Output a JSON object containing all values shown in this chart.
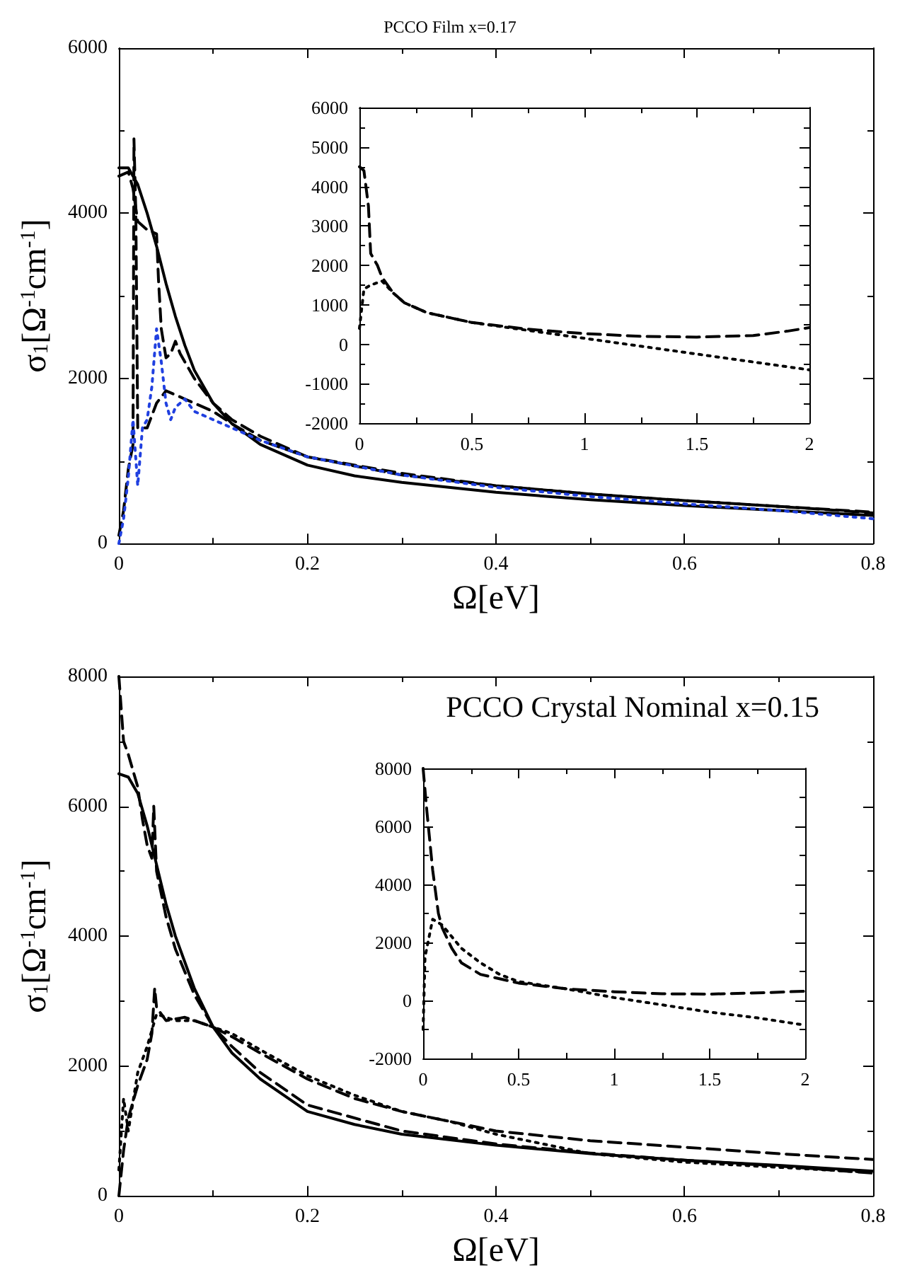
{
  "chart_data": [
    {
      "type": "line",
      "title": "PCCO Film x=0.17",
      "xlabel": "Ω[eV]",
      "ylabel": "σ$_{1}$[Ω$^{-1}$cm$^{-1}$]",
      "xlim": [
        0,
        0.8
      ],
      "xticks": [
        0,
        0.2,
        0.4,
        0.6,
        0.8
      ],
      "ylim": [
        0,
        6000
      ],
      "yticks": [
        0,
        2000,
        4000,
        6000
      ],
      "grid": false,
      "marker": "none",
      "series": [
        {
          "color": "#000000",
          "line_style": "solid",
          "x": [
            0,
            0.01,
            0.02,
            0.03,
            0.04,
            0.05,
            0.06,
            0.07,
            0.08,
            0.1,
            0.12,
            0.15,
            0.2,
            0.25,
            0.3,
            0.4,
            0.5,
            0.6,
            0.7,
            0.8
          ],
          "values": [
            4550,
            4550,
            4350,
            4000,
            3600,
            3150,
            2750,
            2400,
            2100,
            1700,
            1450,
            1200,
            950,
            820,
            740,
            620,
            530,
            460,
            400,
            340
          ]
        },
        {
          "color": "#000000",
          "line_style": "dashed",
          "x": [
            0,
            0.01,
            0.015,
            0.02,
            0.03,
            0.04,
            0.042,
            0.045,
            0.05,
            0.055,
            0.06,
            0.065,
            0.08,
            0.1,
            0.12,
            0.15,
            0.2,
            0.3,
            0.4,
            0.5,
            0.6,
            0.7,
            0.8
          ],
          "values": [
            4450,
            4500,
            4300,
            3900,
            3800,
            3750,
            3200,
            2600,
            2250,
            2300,
            2450,
            2300,
            2000,
            1700,
            1500,
            1300,
            1050,
            830,
            700,
            600,
            520,
            450,
            370
          ]
        },
        {
          "color": "#000000",
          "line_style": "dashed",
          "x": [
            0,
            0.005,
            0.01,
            0.015,
            0.016,
            0.018,
            0.02,
            0.03,
            0.04,
            0.05,
            0.06,
            0.07,
            0.08,
            0.1,
            0.12,
            0.15,
            0.2,
            0.3,
            0.4,
            0.5,
            0.6,
            0.7,
            0.8
          ],
          "values": [
            100,
            400,
            900,
            1200,
            4900,
            4000,
            1400,
            1400,
            1700,
            1850,
            1800,
            1750,
            1700,
            1600,
            1450,
            1250,
            1050,
            850,
            700,
            600,
            520,
            450,
            380
          ]
        },
        {
          "color": "#2040e0",
          "line_style": "dotted",
          "x": [
            0,
            0.005,
            0.01,
            0.015,
            0.02,
            0.025,
            0.03,
            0.035,
            0.04,
            0.045,
            0.05,
            0.055,
            0.06,
            0.07,
            0.08,
            0.1,
            0.12,
            0.15,
            0.2,
            0.3,
            0.4,
            0.5,
            0.6,
            0.7,
            0.8
          ],
          "values": [
            0,
            300,
            800,
            1500,
            700,
            1400,
            1500,
            1900,
            2600,
            2200,
            1700,
            1500,
            1650,
            1750,
            1600,
            1500,
            1400,
            1250,
            1050,
            830,
            680,
            570,
            480,
            400,
            300
          ]
        }
      ]
    },
    {
      "type": "line",
      "xlim": [
        0,
        2
      ],
      "xticks": [
        0,
        0.5,
        1,
        1.5,
        2
      ],
      "ylim": [
        -2000,
        6000
      ],
      "yticks": [
        -2000,
        -1000,
        0,
        1000,
        2000,
        3000,
        4000,
        5000,
        6000
      ],
      "grid": false,
      "marker": "none",
      "series": [
        {
          "color": "#000000",
          "line_style": "dashed",
          "x": [
            0,
            0.02,
            0.04,
            0.05,
            0.08,
            0.1,
            0.15,
            0.2,
            0.3,
            0.5,
            0.75,
            1,
            1.25,
            1.5,
            1.75,
            1.9,
            2
          ],
          "values": [
            4500,
            4400,
            3500,
            2300,
            2000,
            1700,
            1300,
            1050,
            800,
            550,
            380,
            270,
            200,
            180,
            220,
            330,
            420
          ]
        },
        {
          "color": "#000000",
          "line_style": "dotted",
          "x": [
            0,
            0.02,
            0.05,
            0.1,
            0.15,
            0.2,
            0.3,
            0.5,
            0.75,
            1,
            1.25,
            1.5,
            1.75,
            2
          ],
          "values": [
            400,
            1400,
            1500,
            1600,
            1300,
            1050,
            800,
            550,
            350,
            150,
            -50,
            -250,
            -450,
            -650
          ]
        }
      ]
    },
    {
      "type": "line",
      "title": "PCCO Crystal Nominal x=0.15",
      "xlabel": "Ω[eV]",
      "ylabel": "σ$_{1}$[Ω$^{-1}$cm$^{-1}$]",
      "xlim": [
        0,
        0.8
      ],
      "xticks": [
        0,
        0.2,
        0.4,
        0.6,
        0.8
      ],
      "ylim": [
        0,
        8000
      ],
      "yticks": [
        0,
        2000,
        4000,
        6000,
        8000
      ],
      "grid": false,
      "marker": "none",
      "series": [
        {
          "color": "#000000",
          "line_style": "solid",
          "x": [
            0,
            0.01,
            0.02,
            0.03,
            0.04,
            0.05,
            0.06,
            0.08,
            0.1,
            0.12,
            0.15,
            0.2,
            0.25,
            0.3,
            0.4,
            0.5,
            0.6,
            0.7,
            0.8
          ],
          "values": [
            6500,
            6450,
            6200,
            5700,
            5100,
            4500,
            4000,
            3200,
            2600,
            2200,
            1800,
            1300,
            1100,
            950,
            780,
            650,
            550,
            470,
            380
          ]
        },
        {
          "color": "#000000",
          "line_style": "dashed",
          "x": [
            0,
            0.005,
            0.01,
            0.02,
            0.025,
            0.03,
            0.035,
            0.037,
            0.04,
            0.05,
            0.06,
            0.08,
            0.1,
            0.12,
            0.15,
            0.2,
            0.3,
            0.4,
            0.5,
            0.6,
            0.7,
            0.8
          ],
          "values": [
            8000,
            7000,
            6800,
            6300,
            5800,
            5400,
            5200,
            6000,
            5000,
            4300,
            3800,
            3100,
            2600,
            2300,
            1900,
            1400,
            1000,
            800,
            660,
            550,
            460,
            350
          ]
        },
        {
          "color": "#000000",
          "line_style": "dashed",
          "x": [
            0,
            0.005,
            0.01,
            0.02,
            0.03,
            0.035,
            0.038,
            0.04,
            0.05,
            0.07,
            0.09,
            0.1,
            0.12,
            0.15,
            0.2,
            0.25,
            0.3,
            0.35,
            0.4,
            0.5,
            0.6,
            0.7,
            0.8
          ],
          "values": [
            0,
            700,
            1200,
            1700,
            2100,
            2500,
            3200,
            2900,
            2700,
            2750,
            2650,
            2600,
            2450,
            2200,
            1800,
            1500,
            1300,
            1150,
            1000,
            850,
            750,
            650,
            560
          ]
        },
        {
          "color": "#000000",
          "line_style": "dotted",
          "x": [
            0,
            0.005,
            0.01,
            0.02,
            0.03,
            0.04,
            0.06,
            0.08,
            0.1,
            0.12,
            0.15,
            0.2,
            0.25,
            0.3,
            0.35,
            0.4,
            0.45,
            0.5,
            0.6,
            0.7,
            0.8
          ],
          "values": [
            400,
            1500,
            1000,
            1900,
            2300,
            2800,
            2700,
            2700,
            2600,
            2500,
            2250,
            1850,
            1550,
            1300,
            1150,
            950,
            800,
            650,
            520,
            440,
            360
          ]
        }
      ]
    },
    {
      "type": "line",
      "xlim": [
        0,
        2
      ],
      "xticks": [
        0,
        0.5,
        1,
        1.5,
        2
      ],
      "ylim": [
        -2000,
        8000
      ],
      "yticks": [
        -2000,
        0,
        2000,
        4000,
        6000,
        8000
      ],
      "grid": false,
      "marker": "none",
      "series": [
        {
          "color": "#000000",
          "line_style": "dashed",
          "x": [
            0,
            0.02,
            0.05,
            0.08,
            0.1,
            0.15,
            0.2,
            0.3,
            0.5,
            0.75,
            1,
            1.25,
            1.5,
            1.75,
            2
          ],
          "values": [
            8000,
            6500,
            4500,
            3000,
            2500,
            1800,
            1300,
            900,
            600,
            400,
            300,
            230,
            220,
            260,
            320
          ]
        },
        {
          "color": "#000000",
          "line_style": "dotted",
          "x": [
            0,
            0.01,
            0.05,
            0.1,
            0.15,
            0.2,
            0.3,
            0.4,
            0.5,
            0.75,
            1,
            1.25,
            1.5,
            1.75,
            2
          ],
          "values": [
            -1000,
            1500,
            2800,
            2600,
            2200,
            1800,
            1300,
            900,
            650,
            400,
            100,
            -150,
            -400,
            -600,
            -850
          ]
        }
      ]
    }
  ]
}
